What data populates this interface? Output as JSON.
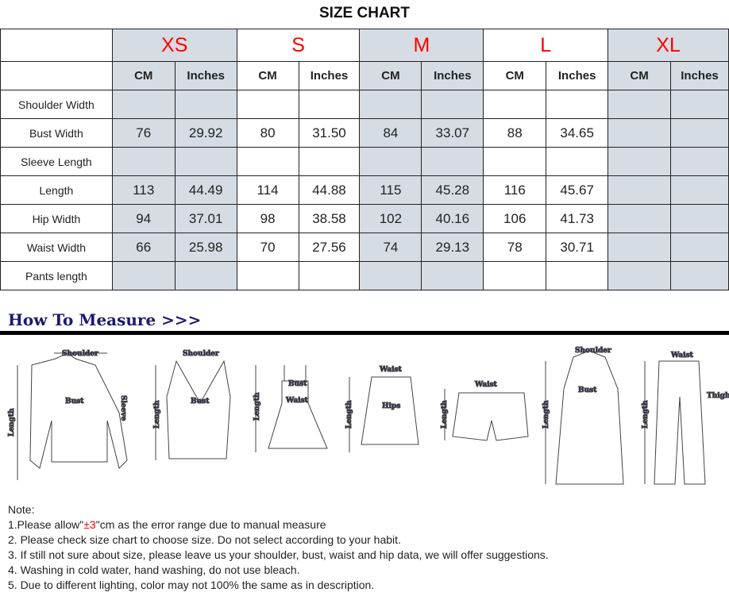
{
  "title": "SIZE CHART",
  "sizes": [
    "XS",
    "S",
    "M",
    "L",
    "XL"
  ],
  "units": {
    "cm": "CM",
    "in": "Inches"
  },
  "rows": [
    {
      "label": "Shoulder Width",
      "values": [
        "",
        "",
        "",
        "",
        "",
        "",
        "",
        "",
        "",
        ""
      ]
    },
    {
      "label": "Bust Width",
      "values": [
        "76",
        "29.92",
        "80",
        "31.50",
        "84",
        "33.07",
        "88",
        "34.65",
        "",
        ""
      ]
    },
    {
      "label": "Sleeve Length",
      "values": [
        "",
        "",
        "",
        "",
        "",
        "",
        "",
        "",
        "",
        ""
      ]
    },
    {
      "label": "Length",
      "values": [
        "113",
        "44.49",
        "114",
        "44.88",
        "115",
        "45.28",
        "116",
        "45.67",
        "",
        ""
      ]
    },
    {
      "label": "Hip Width",
      "values": [
        "94",
        "37.01",
        "98",
        "38.58",
        "102",
        "40.16",
        "106",
        "41.73",
        "",
        ""
      ]
    },
    {
      "label": "Waist Width",
      "values": [
        "66",
        "25.98",
        "70",
        "27.56",
        "74",
        "29.13",
        "78",
        "30.71",
        "",
        ""
      ]
    },
    {
      "label": "Pants length",
      "values": [
        "",
        "",
        "",
        "",
        "",
        "",
        "",
        "",
        "",
        ""
      ]
    }
  ],
  "colors": {
    "shaded": "#d6dce4",
    "size_label": "#ff0000",
    "measure_text": "#1a1a6e"
  },
  "measure": {
    "heading": "How To Measure >>>",
    "labels": {
      "shoulder": "Shoulder",
      "bust": "Bust",
      "sleeve": "Sleeve",
      "length": "Length",
      "waist": "Waist",
      "hips": "Hips",
      "thigh": "Thigh"
    }
  },
  "notes": {
    "heading": "Note:",
    "line1_pre": "1.Please allow\"",
    "line1_red": "±3",
    "line1_post": "\"cm as the error range due to manual measure",
    "line2": "2. Please check size chart to choose size. Do not select according to your habit.",
    "line3": "3. If still not sure about size, please leave us your shoulder, bust, waist and hip data, we will offer suggestions.",
    "line4": "4. Washing in cold water, hand washing, do not use bleach.",
    "line5": "5. Due to different lighting, color may not 100% the same as in description."
  }
}
